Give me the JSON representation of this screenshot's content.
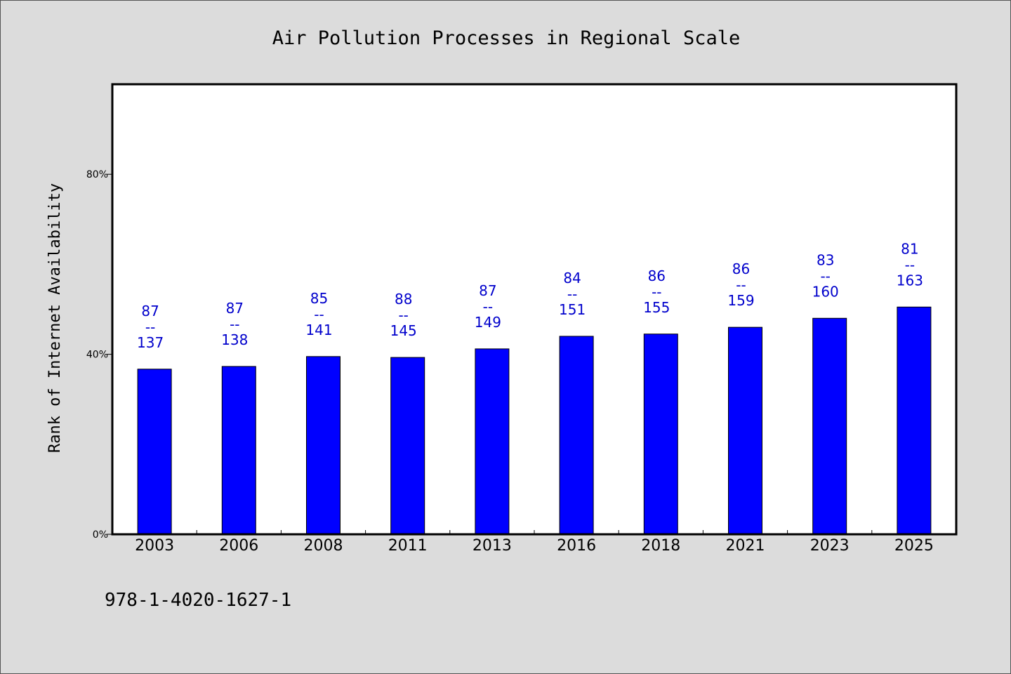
{
  "chart_data": {
    "type": "bar",
    "title": "Air Pollution Processes in Regional Scale",
    "xlabel": "",
    "ylabel": "Rank of Internet Availability",
    "categories": [
      "2003",
      "2006",
      "2008",
      "2011",
      "2013",
      "2016",
      "2018",
      "2021",
      "2023",
      "2025"
    ],
    "values": [
      36.7,
      37.3,
      39.5,
      39.3,
      41.2,
      44.0,
      44.5,
      46.0,
      48.0,
      50.5
    ],
    "data_labels": [
      {
        "top": "87",
        "sep": "--",
        "bottom": "137"
      },
      {
        "top": "87",
        "sep": "--",
        "bottom": "138"
      },
      {
        "top": "85",
        "sep": "--",
        "bottom": "141"
      },
      {
        "top": "88",
        "sep": "--",
        "bottom": "145"
      },
      {
        "top": "87",
        "sep": "--",
        "bottom": "149"
      },
      {
        "top": "84",
        "sep": "--",
        "bottom": "151"
      },
      {
        "top": "86",
        "sep": "--",
        "bottom": "155"
      },
      {
        "top": "86",
        "sep": "--",
        "bottom": "159"
      },
      {
        "top": "83",
        "sep": "--",
        "bottom": "160"
      },
      {
        "top": "81",
        "sep": "--",
        "bottom": "163"
      }
    ],
    "ylim": [
      0,
      100
    ],
    "yticks": [
      0,
      40,
      80
    ],
    "ytick_labels": [
      "0%",
      "40%",
      "80%"
    ],
    "grid": false,
    "legend": "none",
    "colors": {
      "bar": "#0000ff",
      "label": "#0000cc",
      "background": "#dcdcdc",
      "plot": "#ffffff"
    }
  },
  "footnote": "978-1-4020-1627-1"
}
